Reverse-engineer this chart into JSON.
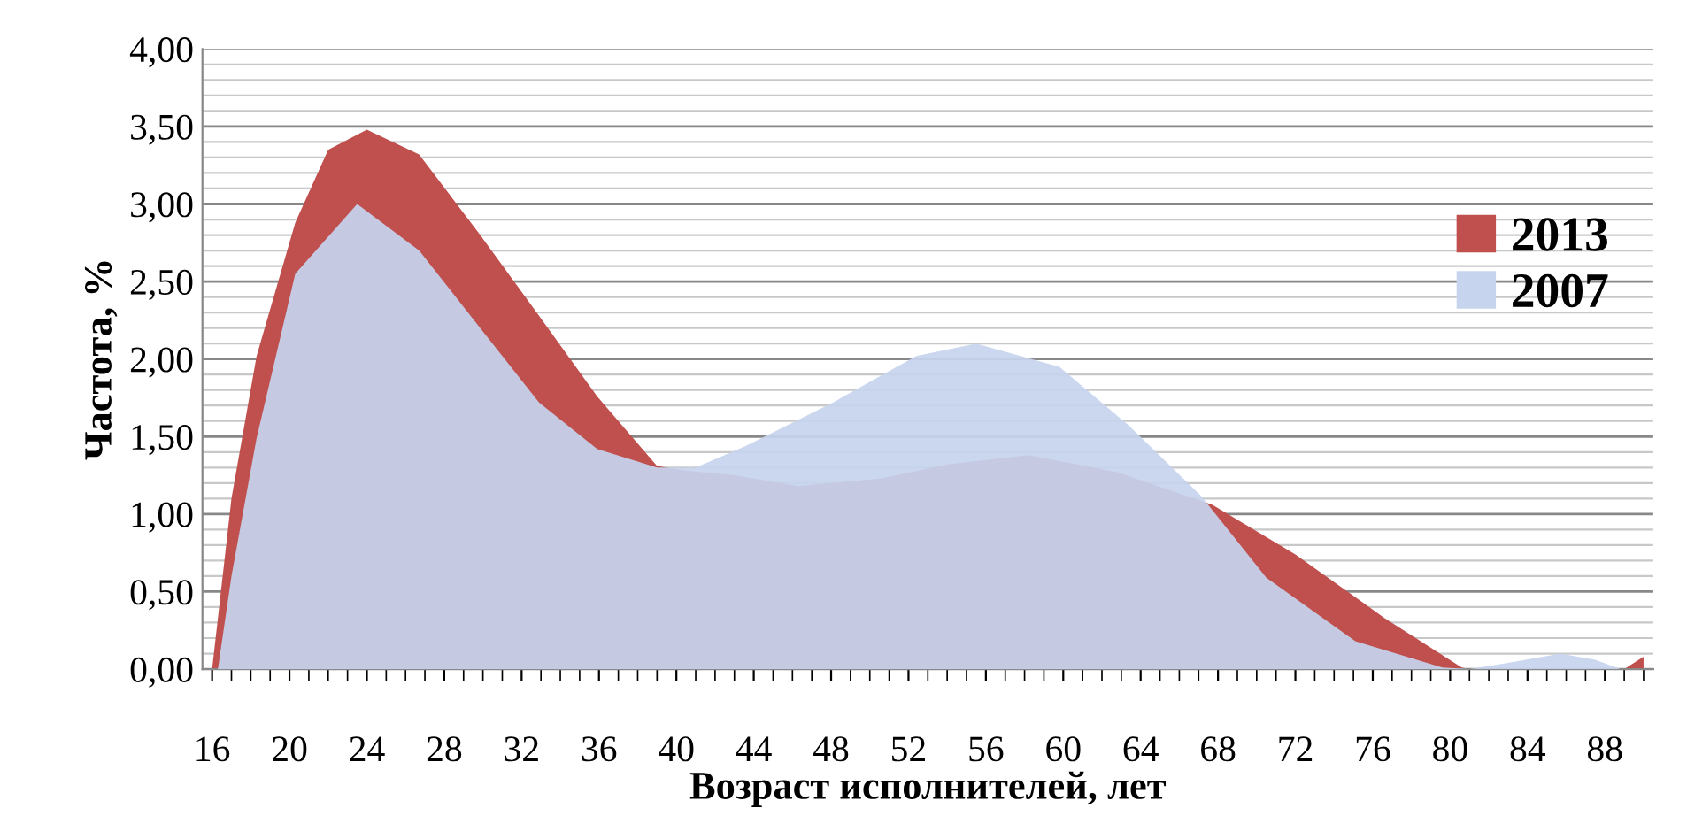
{
  "chart_data": {
    "type": "area",
    "xlabel": "Возраст исполнителей, лет",
    "ylabel": "Частота, %",
    "xlim": [
      15.5,
      90.5
    ],
    "xticks": [
      16,
      20,
      24,
      28,
      32,
      36,
      40,
      44,
      48,
      52,
      56,
      60,
      64,
      68,
      72,
      76,
      80,
      84,
      88
    ],
    "ylim": [
      0,
      4
    ],
    "yticks": [
      {
        "value": 0,
        "label": "0,00"
      },
      {
        "value": 0.5,
        "label": "0,50"
      },
      {
        "value": 1,
        "label": "1,00"
      },
      {
        "value": 1.5,
        "label": "1,50"
      },
      {
        "value": 2,
        "label": "2,00"
      },
      {
        "value": 2.5,
        "label": "2,50"
      },
      {
        "value": 3,
        "label": "3,00"
      },
      {
        "value": 3.5,
        "label": "3,50"
      },
      {
        "value": 4,
        "label": "4,00"
      }
    ],
    "grid": "y",
    "legend": "right",
    "series": [
      {
        "name": "2013",
        "color": "#c0504d",
        "x": [
          16,
          17,
          18.3,
          20.3,
          22,
          24,
          26.7,
          29.8,
          32.9,
          35.9,
          39,
          40.5,
          43,
          46.3,
          50.6,
          54,
          58.2,
          62.8,
          67.7,
          72,
          76.6,
          80.6,
          81,
          89,
          90
        ],
        "values": [
          0,
          1.1,
          2.02,
          2.88,
          3.35,
          3.48,
          3.32,
          2.81,
          2.28,
          1.76,
          1.31,
          1.28,
          1.25,
          1.18,
          1.23,
          1.32,
          1.38,
          1.27,
          1.06,
          0.74,
          0.33,
          0.01,
          0,
          0,
          0.08
        ]
      },
      {
        "name": "2007",
        "color": "#c6d4ee",
        "x": [
          16.3,
          17,
          18.3,
          20.3,
          23.5,
          26.7,
          29.8,
          32.9,
          35.9,
          39,
          41,
          43.6,
          48.1,
          52.4,
          55.5,
          59.8,
          63.4,
          67.1,
          70.5,
          75.1,
          79.6,
          81,
          83,
          85.7,
          87.5,
          88.8
        ],
        "values": [
          0,
          0.6,
          1.49,
          2.55,
          3.0,
          2.7,
          2.21,
          1.72,
          1.42,
          1.3,
          1.3,
          1.44,
          1.72,
          2.02,
          2.1,
          1.95,
          1.57,
          1.12,
          0.59,
          0.18,
          0.01,
          0,
          0.04,
          0.1,
          0.06,
          0
        ]
      }
    ]
  }
}
